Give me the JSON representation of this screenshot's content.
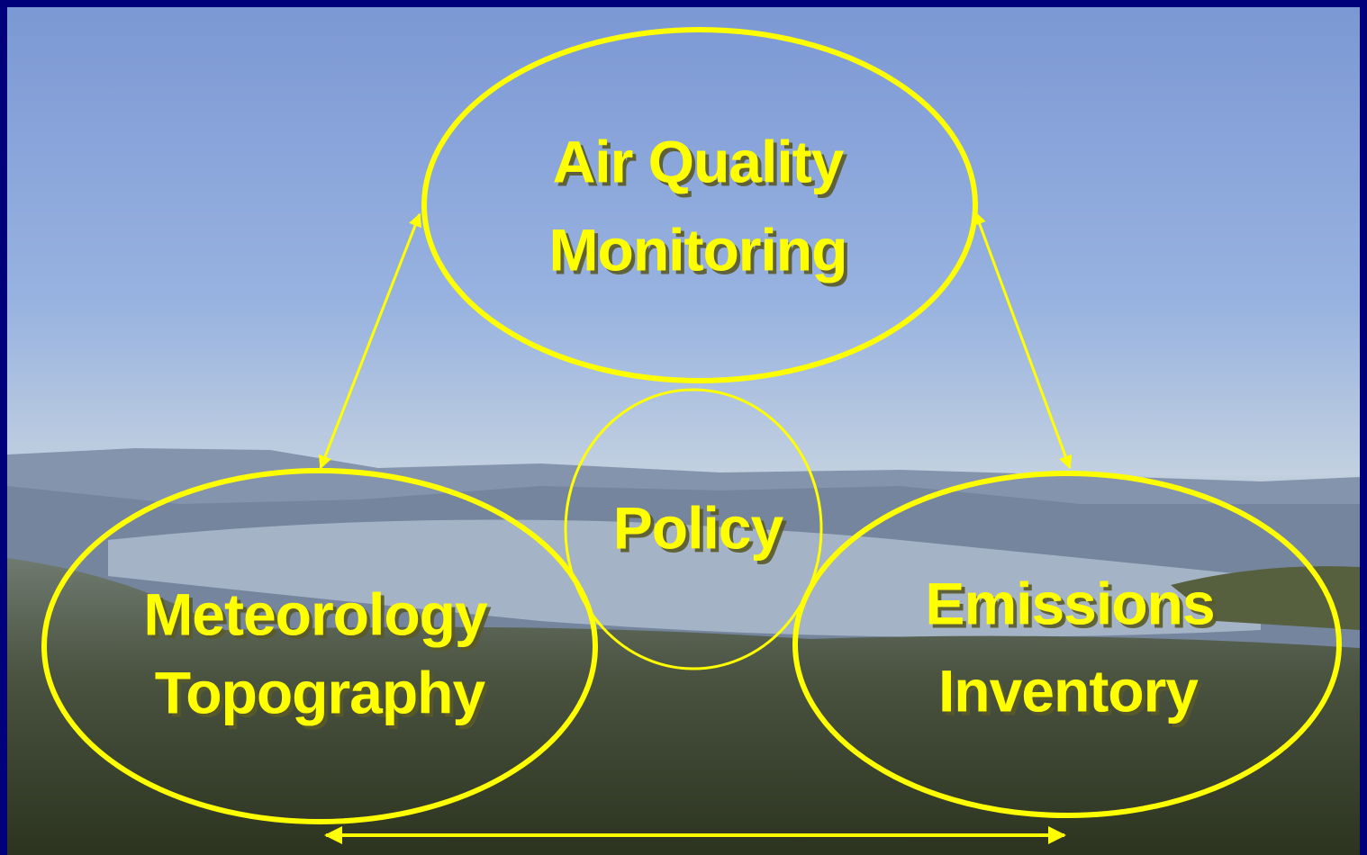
{
  "nodes": [
    {
      "lines": [
        "Air Quality",
        "Monitoring"
      ]
    },
    {
      "lines": [
        "Policy"
      ]
    },
    {
      "lines": [
        "Meteorology",
        "Topography"
      ]
    },
    {
      "lines": [
        "Emissions",
        "Inventory"
      ]
    }
  ]
}
